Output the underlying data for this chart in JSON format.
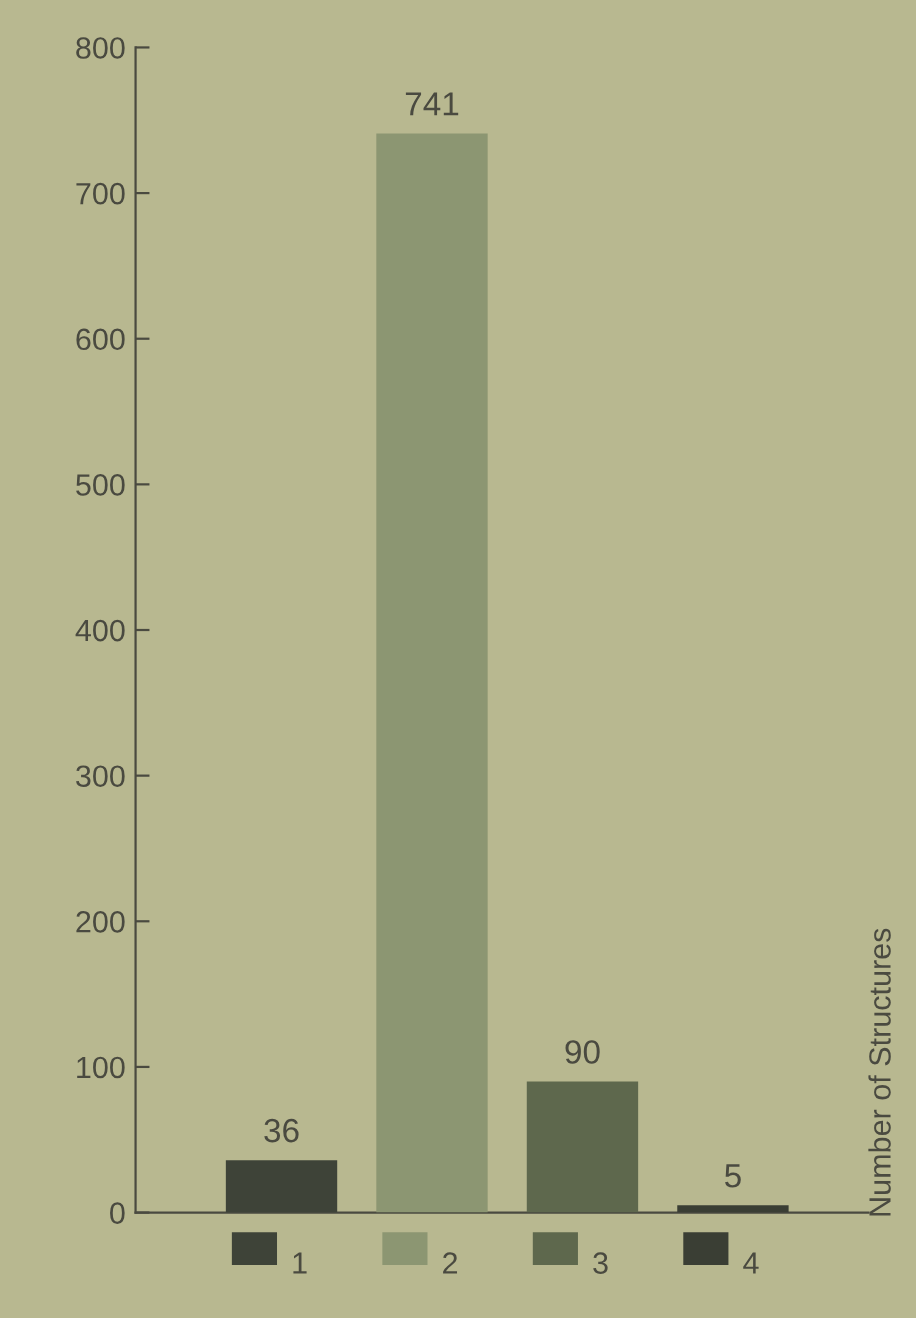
{
  "chart_data": {
    "type": "bar",
    "ylabel": "Number of Structures",
    "categories": [
      "1",
      "2",
      "3",
      "4"
    ],
    "values": [
      36,
      741,
      90,
      5
    ],
    "colors": [
      "#3e4338",
      "#8c9672",
      "#5e684d",
      "#3a3e34"
    ],
    "ylim": [
      0,
      800
    ],
    "yticks": [
      0,
      100,
      200,
      300,
      400,
      500,
      600,
      700,
      800
    ],
    "data_labels": true,
    "grid": false
  }
}
